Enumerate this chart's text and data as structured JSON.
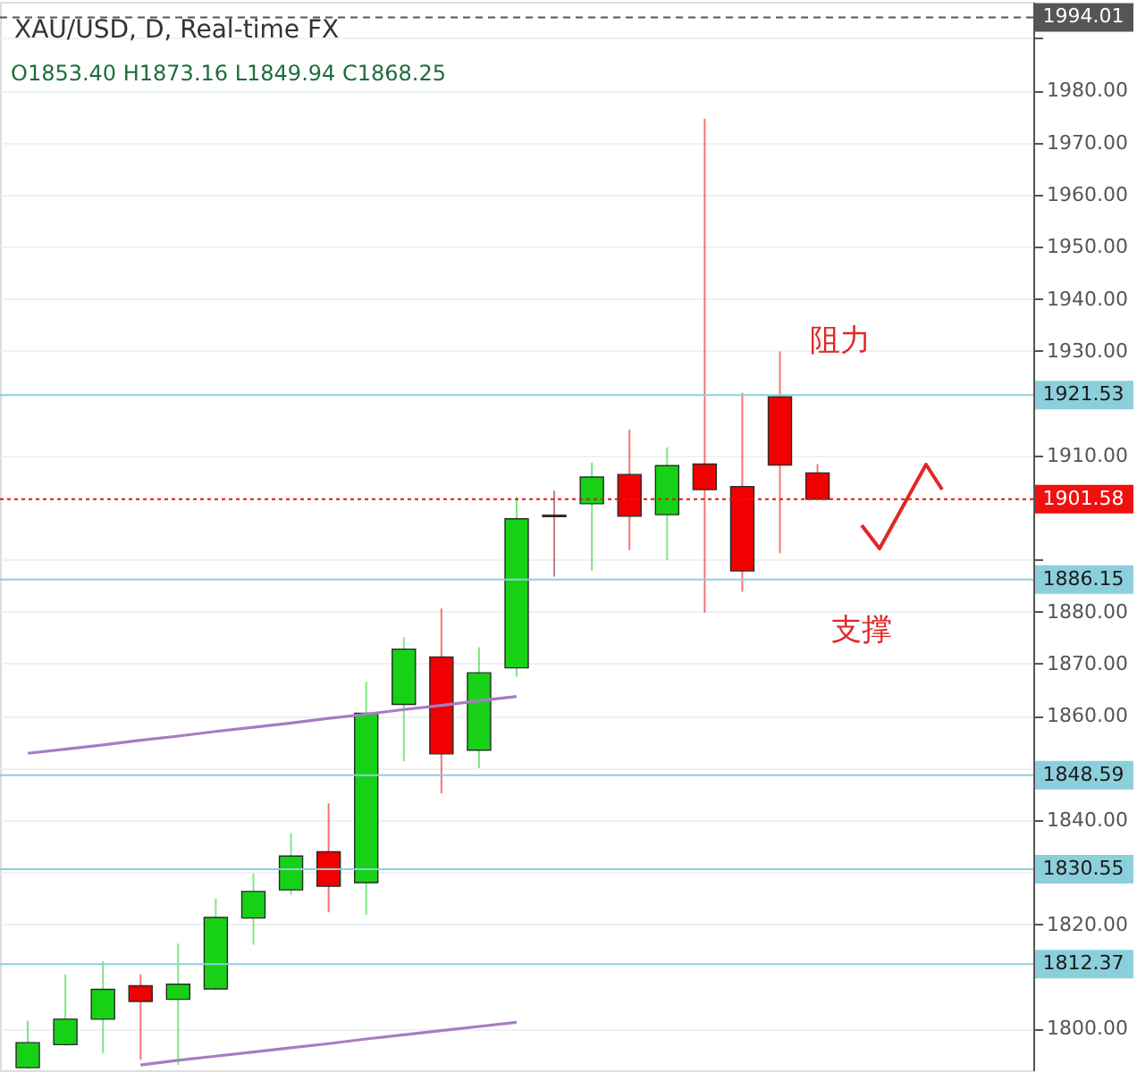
{
  "chart_data": {
    "type": "candlestick",
    "title": "XAU/USD, D, Real-time FX",
    "subtitle": "O1853.40 H1873.16 L1849.94 C1868.25",
    "categories": [
      null,
      null,
      null,
      null,
      null,
      null,
      null,
      null,
      null,
      null,
      null,
      null,
      null,
      null,
      null,
      null,
      null,
      null,
      null,
      null,
      null,
      null,
      null,
      null,
      null,
      null,
      null
    ],
    "ohlc": [
      [
        1792.5,
        1801.5,
        1792.2,
        1797.3
      ],
      [
        1796.9,
        1810.4,
        1796.7,
        1801.8
      ],
      [
        1801.8,
        1812.9,
        1795.3,
        1807.5
      ],
      [
        1808.2,
        1810.4,
        1794,
        1805.2
      ],
      [
        1805.6,
        1816.3,
        1793,
        1808.5
      ],
      [
        1807.6,
        1824.9,
        1807.3,
        1821.3
      ],
      [
        1821.2,
        1829.7,
        1816.1,
        1826.3
      ],
      [
        1826.6,
        1837.5,
        1825.7,
        1833.1
      ],
      [
        1833.9,
        1843.2,
        1822.3,
        1827.3
      ],
      [
        1828,
        1866.5,
        1821.8,
        1860.5
      ],
      [
        1862.2,
        1875.1,
        1851.3,
        1872.8
      ],
      [
        1871.3,
        1880.6,
        1845.1,
        1852.7
      ],
      [
        1853.4,
        1873.16,
        1849.94,
        1868.25
      ],
      [
        1869.2,
        1902,
        1867.5,
        1897.8
      ],
      [
        1898.5,
        1903.2,
        1886.7,
        1898.2
      ],
      [
        1900.7,
        1908.6,
        1887.8,
        1905.8
      ],
      [
        1906.3,
        1914.9,
        1891.8,
        1898.3
      ],
      [
        1898.6,
        1911.5,
        1889.9,
        1908
      ],
      [
        1908.3,
        1974.6,
        1879.8,
        1903.4
      ],
      [
        1904,
        1922,
        1883.8,
        1887.8
      ],
      [
        1921.2,
        1929.9,
        1891.2,
        1908.1
      ],
      [
        1906.6,
        1908.3,
        1901.58,
        1901.58
      ],
      null,
      null,
      null,
      null,
      null
    ],
    "colors": [
      "#17d117",
      "#17d117",
      "#17d117",
      "#f00000",
      "#17d117",
      "#17d117",
      "#17d117",
      "#17d117",
      "#f00000",
      "#17d117",
      "#17d117",
      "#f00000",
      "#17d117",
      "#17d117",
      "#8b1a1a",
      "#17d117",
      "#f00000",
      "#17d117",
      "#f00000",
      "#f00000",
      "#f00000",
      "#f00000",
      null,
      null,
      null,
      null,
      null
    ],
    "series": [
      {
        "type": "line",
        "values": [
          1852.8,
          1853.6,
          1854.4,
          1855.3,
          1856.1,
          1857.0,
          1857.8,
          1858.6,
          1859.5,
          1860.3,
          1861.2,
          1862.0,
          1862.9,
          1863.7,
          null,
          null,
          null,
          null,
          null,
          null,
          null,
          null,
          null,
          null,
          null,
          null,
          null
        ],
        "color": "#a77cc4"
      },
      {
        "type": "line",
        "values": [
          null,
          null,
          null,
          1793.0,
          1793.9,
          1794.7,
          1795.5,
          1796.3,
          1797.1,
          1798.0,
          1798.8,
          1799.6,
          1800.4,
          1801.2,
          null,
          null,
          null,
          null,
          null,
          null,
          null,
          null,
          null,
          null,
          null,
          null,
          null
        ],
        "color": "#a77cc4"
      }
    ],
    "ylim": [
      1792,
      1997
    ],
    "yticks": [
      {
        "value": 1800,
        "label": "1800.00"
      },
      {
        "value": 1820,
        "label": "1820.00"
      },
      {
        "value": 1830,
        "label": null
      },
      {
        "value": 1840,
        "label": "1840.00"
      },
      {
        "value": 1850,
        "label": null
      },
      {
        "value": 1860,
        "label": "1860.00"
      },
      {
        "value": 1870,
        "label": "1870.00"
      },
      {
        "value": 1880,
        "label": "1880.00"
      },
      {
        "value": 1890,
        "label": null
      },
      {
        "value": 1910,
        "label": "1910.00"
      },
      {
        "value": 1930,
        "label": "1930.00"
      },
      {
        "value": 1940,
        "label": "1940.00"
      },
      {
        "value": 1950,
        "label": "1950.00"
      },
      {
        "value": 1960,
        "label": "1960.00"
      },
      {
        "value": 1970,
        "label": "1970.00"
      },
      {
        "value": 1980,
        "label": "1980.00"
      },
      {
        "value": 1990,
        "label": null
      }
    ],
    "ref_lines": [
      {
        "axis": "y",
        "value": 1994.01,
        "label": "1994.01",
        "color": "#555555",
        "line_style": "dashed"
      },
      {
        "axis": "y",
        "value": 1921.53,
        "label": "1921.53",
        "color": "#8ccfdc",
        "line_style": "solid"
      },
      {
        "axis": "y",
        "value": 1901.58,
        "label": "1901.58",
        "color": "#f01010",
        "line_style": "dotted"
      },
      {
        "axis": "y",
        "value": 1886.15,
        "label": "1886.15",
        "color": "#8ccfdc",
        "line_style": "solid"
      },
      {
        "axis": "y",
        "value": 1848.59,
        "label": "1848.59",
        "color": "#8ccfdc",
        "line_style": "solid"
      },
      {
        "axis": "y",
        "value": 1830.55,
        "label": "1830.55",
        "color": "#8ccfdc",
        "line_style": "solid"
      },
      {
        "axis": "y",
        "value": 1812.37,
        "label": "1812.37",
        "color": "#8ccfdc",
        "line_style": "solid"
      }
    ],
    "annotations": [
      "阻力",
      "支撑"
    ],
    "grid": "y",
    "tick_labels": "y",
    "marker": "none"
  }
}
